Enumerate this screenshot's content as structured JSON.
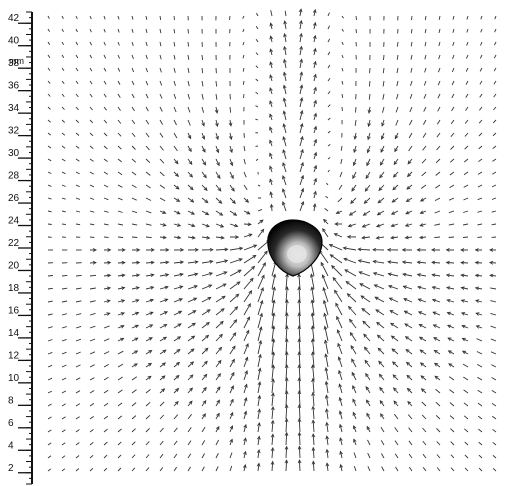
{
  "figure": {
    "unit_label": "mm",
    "y_ticks": [
      "2",
      "4",
      "6",
      "8",
      "10",
      "12",
      "14",
      "16",
      "18",
      "20",
      "22",
      "24",
      "26",
      "28",
      "30",
      "32",
      "34",
      "36",
      "38",
      "40",
      "42"
    ],
    "y_range": [
      1,
      43
    ],
    "colors": {
      "arrow": "#333333",
      "axis": "#111111",
      "object_dark": "#050505",
      "object_light": "#e9e9e9",
      "background": "#ffffff"
    }
  }
}
